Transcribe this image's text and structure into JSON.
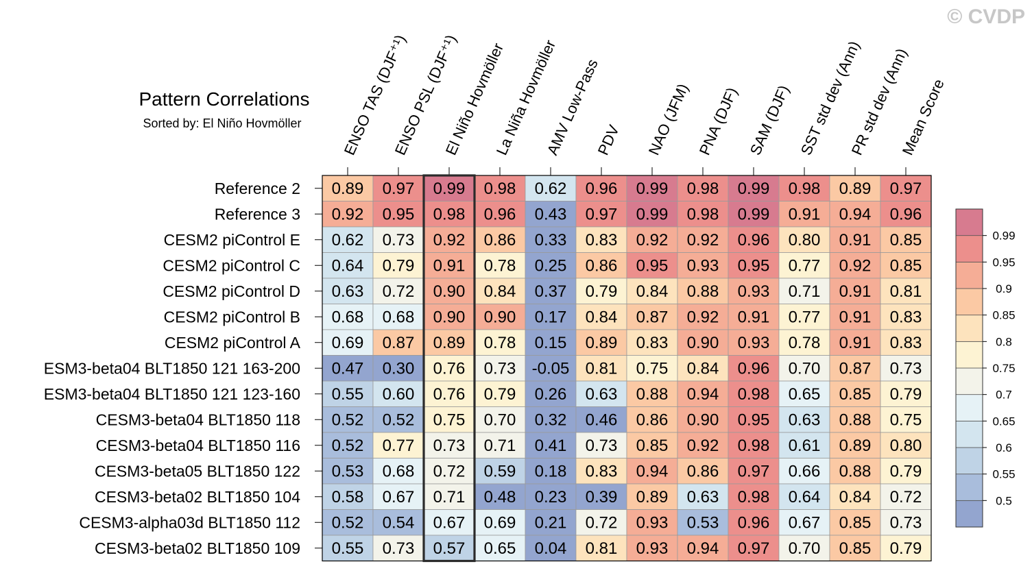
{
  "watermark": "© CVDP",
  "chart_data": {
    "type": "heatmap",
    "title": "Pattern Correlations",
    "subtitle": "Sorted by: El Niño Hovmöller",
    "highlight_column": "El Niño Hovmöller",
    "columns": [
      "ENSO TAS (DJF⁺¹)",
      "ENSO PSL (DJF⁺¹)",
      "El Niño Hovmöller",
      "La Niña Hovmöller",
      "AMV Low-Pass",
      "PDV",
      "NAO (JFM)",
      "PNA (DJF)",
      "SAM (DJF)",
      "SST std dev (Ann)",
      "PR std dev (Ann)",
      "Mean Score"
    ],
    "rows": [
      {
        "name": "Reference 2",
        "values": [
          "0.89",
          "0.97",
          "0.99",
          "0.98",
          "0.62",
          "0.96",
          "0.99",
          "0.98",
          "0.99",
          "0.98",
          "0.89",
          "0.97"
        ]
      },
      {
        "name": "Reference 3",
        "values": [
          "0.92",
          "0.95",
          "0.98",
          "0.96",
          "0.43",
          "0.97",
          "0.99",
          "0.98",
          "0.99",
          "0.91",
          "0.94",
          "0.96"
        ]
      },
      {
        "name": "CESM2 piControl E",
        "values": [
          "0.62",
          "0.73",
          "0.92",
          "0.86",
          "0.33",
          "0.83",
          "0.92",
          "0.92",
          "0.96",
          "0.80",
          "0.91",
          "0.85"
        ]
      },
      {
        "name": "CESM2 piControl C",
        "values": [
          "0.64",
          "0.79",
          "0.91",
          "0.78",
          "0.25",
          "0.86",
          "0.95",
          "0.93",
          "0.95",
          "0.77",
          "0.92",
          "0.85"
        ]
      },
      {
        "name": "CESM2 piControl D",
        "values": [
          "0.63",
          "0.72",
          "0.90",
          "0.84",
          "0.37",
          "0.79",
          "0.84",
          "0.88",
          "0.93",
          "0.71",
          "0.91",
          "0.81"
        ]
      },
      {
        "name": "CESM2 piControl B",
        "values": [
          "0.68",
          "0.68",
          "0.90",
          "0.90",
          "0.17",
          "0.84",
          "0.87",
          "0.92",
          "0.91",
          "0.77",
          "0.91",
          "0.83"
        ]
      },
      {
        "name": "CESM2 piControl A",
        "values": [
          "0.69",
          "0.87",
          "0.89",
          "0.78",
          "0.15",
          "0.89",
          "0.83",
          "0.90",
          "0.93",
          "0.78",
          "0.91",
          "0.83"
        ]
      },
      {
        "name": "ESM3-beta04 BLT1850 121 163-200",
        "values": [
          "0.47",
          "0.30",
          "0.76",
          "0.73",
          "-0.05",
          "0.81",
          "0.75",
          "0.84",
          "0.96",
          "0.70",
          "0.87",
          "0.73"
        ]
      },
      {
        "name": "ESM3-beta04 BLT1850 121 123-160",
        "values": [
          "0.55",
          "0.60",
          "0.76",
          "0.79",
          "0.26",
          "0.63",
          "0.88",
          "0.94",
          "0.98",
          "0.65",
          "0.85",
          "0.79"
        ]
      },
      {
        "name": "CESM3-beta04 BLT1850 118",
        "values": [
          "0.52",
          "0.52",
          "0.75",
          "0.70",
          "0.32",
          "0.46",
          "0.86",
          "0.90",
          "0.95",
          "0.63",
          "0.88",
          "0.75"
        ]
      },
      {
        "name": "CESM3-beta04 BLT1850 116",
        "values": [
          "0.52",
          "0.77",
          "0.73",
          "0.71",
          "0.41",
          "0.73",
          "0.85",
          "0.92",
          "0.98",
          "0.61",
          "0.89",
          "0.80"
        ]
      },
      {
        "name": "CESM3-beta05 BLT1850 122",
        "values": [
          "0.53",
          "0.68",
          "0.72",
          "0.59",
          "0.18",
          "0.83",
          "0.94",
          "0.86",
          "0.97",
          "0.66",
          "0.88",
          "0.79"
        ]
      },
      {
        "name": "CESM3-beta02 BLT1850 104",
        "values": [
          "0.58",
          "0.67",
          "0.71",
          "0.48",
          "0.23",
          "0.39",
          "0.89",
          "0.63",
          "0.98",
          "0.64",
          "0.84",
          "0.72"
        ]
      },
      {
        "name": "CESM3-alpha03d BLT1850 112",
        "values": [
          "0.52",
          "0.54",
          "0.67",
          "0.69",
          "0.21",
          "0.72",
          "0.93",
          "0.53",
          "0.96",
          "0.67",
          "0.85",
          "0.73"
        ]
      },
      {
        "name": "CESM3-beta02 BLT1850 109",
        "values": [
          "0.55",
          "0.73",
          "0.57",
          "0.65",
          "0.04",
          "0.81",
          "0.93",
          "0.94",
          "0.97",
          "0.70",
          "0.85",
          "0.79"
        ]
      }
    ],
    "colorbar": {
      "levels": [
        0.5,
        0.55,
        0.6,
        0.65,
        0.7,
        0.75,
        0.8,
        0.85,
        0.9,
        0.95,
        0.99
      ],
      "labels": [
        "0.5",
        "0.55",
        "0.6",
        "0.65",
        "0.7",
        "0.75",
        "0.8",
        "0.85",
        "0.9",
        "0.95",
        "0.99"
      ],
      "colors": [
        "#93a5cf",
        "#a9bddc",
        "#bfd3e6",
        "#d3e5ef",
        "#e6f2f6",
        "#f3f3ea",
        "#fdf3d3",
        "#fde3bd",
        "#fbc9a4",
        "#f5ad96",
        "#ec8f8c",
        "#d77b8f"
      ]
    }
  }
}
